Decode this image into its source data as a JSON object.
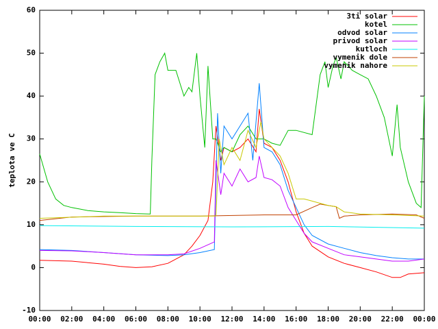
{
  "chart_data": {
    "type": "line",
    "y_label": "teplota ve C",
    "xlim": [
      0,
      24
    ],
    "ylim": [
      -10,
      60
    ],
    "xticks": [
      {
        "value": 0,
        "label": "00:00"
      },
      {
        "value": 2,
        "label": "02:00"
      },
      {
        "value": 4,
        "label": "04:00"
      },
      {
        "value": 6,
        "label": "06:00"
      },
      {
        "value": 8,
        "label": "08:00"
      },
      {
        "value": 10,
        "label": "10:00"
      },
      {
        "value": 12,
        "label": "12:00"
      },
      {
        "value": 14,
        "label": "14:00"
      },
      {
        "value": 16,
        "label": "16:00"
      },
      {
        "value": 18,
        "label": "18:00"
      },
      {
        "value": 20,
        "label": "20:00"
      },
      {
        "value": 22,
        "label": "22:00"
      },
      {
        "value": 24,
        "label": "00:00"
      }
    ],
    "yticks": [
      -10,
      0,
      10,
      20,
      30,
      40,
      50,
      60
    ],
    "legend": "top-right",
    "series": [
      {
        "name": "3ti solar",
        "color": "#ff0000",
        "x": [
          0,
          2,
          4,
          5,
          6,
          7,
          8,
          9,
          9.5,
          10,
          10.5,
          10.8,
          11,
          11.3,
          11.5,
          12,
          12.5,
          13,
          13.5,
          13.7,
          14,
          14.5,
          15,
          15.5,
          16,
          16.5,
          17,
          18,
          19,
          20,
          21,
          22,
          22.5,
          23,
          24
        ],
        "values": [
          1.7,
          1.5,
          0.8,
          0.3,
          0,
          0.2,
          1,
          3,
          5,
          7.5,
          11,
          20,
          33,
          25,
          28,
          27,
          28,
          30,
          27,
          37,
          29,
          28,
          25,
          20,
          13,
          8,
          5,
          2.5,
          1,
          0,
          -1,
          -2.3,
          -2.3,
          -1.5,
          -1.2
        ]
      },
      {
        "name": "kotel",
        "color": "#00c000",
        "x": [
          0,
          0.5,
          1,
          1.5,
          2,
          3,
          4,
          5,
          6,
          6.9,
          7,
          7.2,
          7.5,
          7.8,
          8,
          8.5,
          9,
          9.3,
          9.5,
          9.8,
          10,
          10.3,
          10.5,
          10.8,
          11,
          11.3,
          11.5,
          12,
          12.5,
          13,
          13.5,
          14,
          14.5,
          15,
          15.5,
          16,
          17,
          17.5,
          17.8,
          18,
          18.3,
          18.5,
          18.8,
          19,
          19.5,
          20,
          20.5,
          21,
          21.5,
          22,
          22.3,
          22.5,
          23,
          23.5,
          23.8,
          24
        ],
        "values": [
          26.5,
          20,
          16,
          14.5,
          14,
          13.3,
          13,
          12.8,
          12.6,
          12.5,
          25,
          45,
          48,
          50,
          46,
          46,
          40,
          42,
          41,
          50,
          40,
          28,
          47,
          30,
          30,
          27,
          28,
          27,
          31,
          33,
          30,
          30,
          29,
          28.5,
          32,
          32,
          31,
          45,
          48,
          42,
          47,
          49,
          44,
          48,
          46,
          45,
          44,
          40,
          35,
          26,
          38,
          28,
          20,
          15,
          14,
          40
        ]
      },
      {
        "name": "odvod solar",
        "color": "#0080ff",
        "x": [
          0,
          2,
          4,
          6,
          8,
          9,
          10,
          10.9,
          11,
          11.1,
          11.3,
          11.5,
          12,
          12.5,
          13,
          13.3,
          13.7,
          14,
          14.5,
          15,
          15.5,
          16,
          16.5,
          17,
          18,
          19,
          20,
          21,
          22,
          23,
          24
        ],
        "values": [
          4.2,
          4,
          3.5,
          3,
          2.8,
          3,
          3.5,
          4.2,
          20,
          36,
          22,
          33,
          30,
          33,
          36,
          25,
          43,
          28,
          27,
          24,
          18,
          14,
          10,
          7.5,
          5.5,
          4.5,
          3.5,
          2.8,
          2.3,
          2,
          2
        ]
      },
      {
        "name": "privod solar",
        "color": "#c000ff",
        "x": [
          0,
          2,
          4,
          6,
          8,
          9,
          10,
          10.9,
          11,
          11.3,
          11.5,
          12,
          12.5,
          13,
          13.5,
          13.7,
          14,
          14.5,
          15,
          15.5,
          16,
          16.5,
          17,
          18,
          19,
          20,
          21,
          22,
          23,
          24
        ],
        "values": [
          4,
          3.9,
          3.5,
          3,
          3,
          3.2,
          4.5,
          6,
          25,
          17,
          22,
          19,
          23,
          20,
          21,
          26,
          21,
          20.5,
          19,
          14,
          11,
          8,
          6,
          4.5,
          3,
          2.5,
          2,
          1.5,
          1.5,
          2
        ]
      },
      {
        "name": "kutloch",
        "color": "#00eeee",
        "x": [
          0,
          6,
          12,
          18,
          24
        ],
        "values": [
          9.8,
          9.6,
          9.5,
          9.6,
          9.2
        ]
      },
      {
        "name": "vymenik dole",
        "color": "#c04000",
        "x": [
          0,
          2,
          6,
          10,
          14,
          16,
          17,
          17.5,
          18,
          18.5,
          18.7,
          19,
          20,
          22,
          23.5,
          24
        ],
        "values": [
          11,
          11.8,
          12,
          12,
          12.3,
          12.3,
          14,
          14.8,
          14.5,
          14.2,
          11.5,
          12,
          12.3,
          12.5,
          12.3,
          11.5
        ]
      },
      {
        "name": "vymenik nahore",
        "color": "#c8c800",
        "x": [
          0,
          4,
          10,
          11,
          11.2,
          11.5,
          12,
          12.5,
          13,
          13.5,
          13.8,
          14,
          15,
          15.5,
          16,
          16.5,
          17,
          17.5,
          18,
          18.5,
          19,
          20,
          22,
          24
        ],
        "values": [
          11.5,
          12,
          12,
          12,
          30,
          24,
          28,
          25,
          32,
          28,
          34,
          30,
          26,
          22,
          16,
          16,
          15.5,
          15,
          14.5,
          14.2,
          13,
          12.5,
          12.3,
          12
        ]
      }
    ]
  }
}
